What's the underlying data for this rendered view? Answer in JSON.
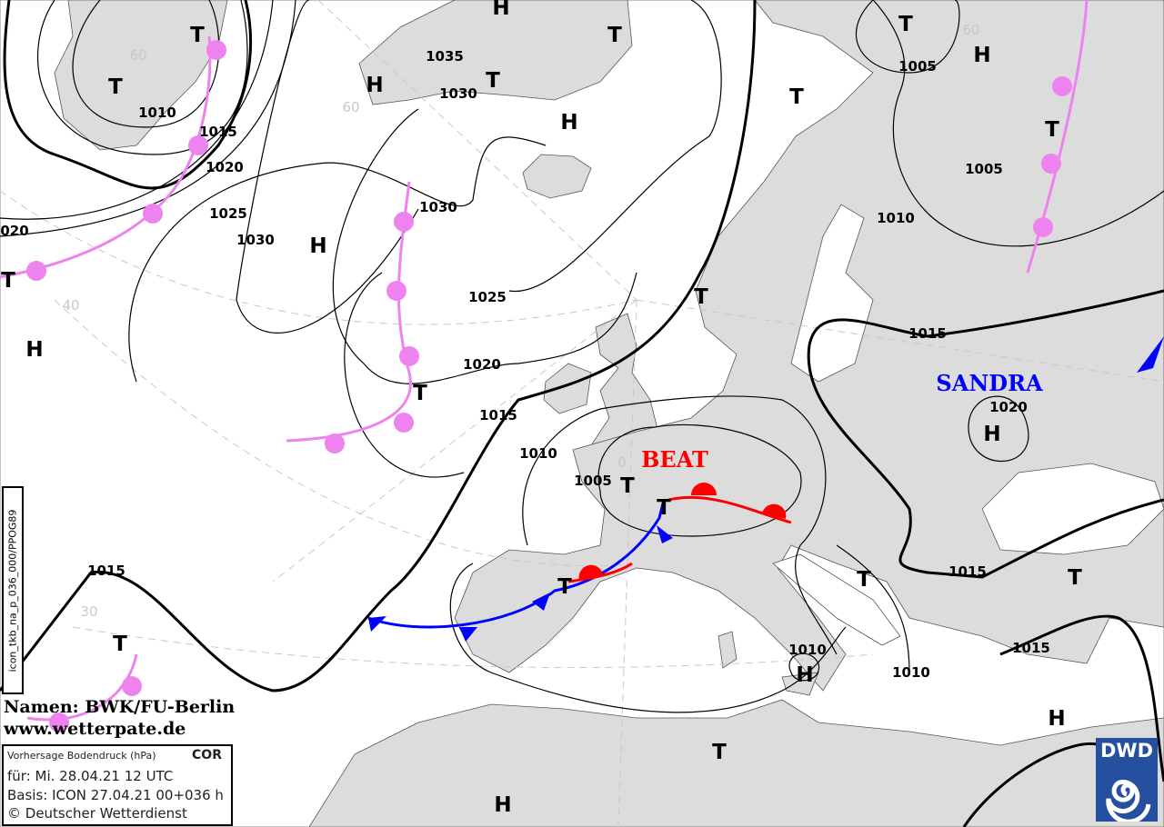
{
  "map": {
    "land_color": "#dcdcdc",
    "isobar_labels": [
      "1035",
      "1030",
      "1010",
      "1015",
      "1020",
      "1025",
      "1030",
      "020",
      "1030",
      "1025",
      "1020",
      "1015",
      "1010",
      "1005",
      "1005",
      "1005",
      "1010",
      "1015",
      "SANDRA_1020",
      "1015",
      "1015",
      "1010",
      "1010",
      "1015"
    ],
    "pressure_centers": [
      "H",
      "T",
      "T",
      "H",
      "T",
      "H",
      "T",
      "H",
      "H",
      "T",
      "T",
      "H",
      "H",
      "T",
      "T",
      "T",
      "T",
      "T",
      "T",
      "T",
      "H",
      "H",
      "T",
      "T",
      "T",
      "H",
      "T"
    ],
    "latitude_labels": [
      "60",
      "60",
      "40",
      "30",
      "60",
      "0"
    ],
    "storms": [
      {
        "name": "BEAT",
        "color": "#ff0000"
      },
      {
        "name": "SANDRA",
        "color": "#0000ff"
      }
    ],
    "sandra_center_pressure": "1020",
    "front_colors": {
      "occlusion": "#ee82ee",
      "cold": "#0000ff",
      "warm": "#ff0000"
    }
  },
  "credit": {
    "names": "Namen: BWK/FU-Berlin",
    "website": "www.wetterpate.de"
  },
  "infobox": {
    "title": "Vorhersage Bodendruck (hPa)",
    "flag": "COR",
    "valid": "für:  Mi. 28.04.21  12 UTC",
    "basis": "Basis: ICON  27.04.21 00+036 h",
    "copyright": "© Deutscher Wetterdienst"
  },
  "product_code": "icon_tkb_na_p_036_000/PPOG89",
  "logo": {
    "text": "DWD",
    "color": "#2550a0"
  }
}
